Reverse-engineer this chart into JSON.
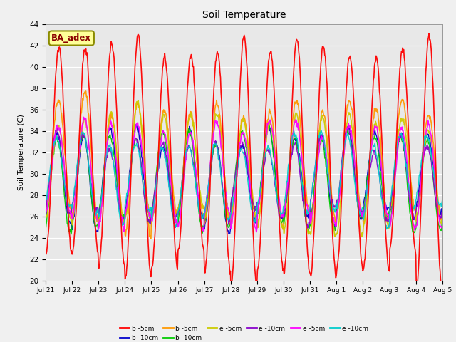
{
  "title": "Soil Temperature",
  "ylabel": "Soil Temperature (C)",
  "ylim": [
    20,
    44
  ],
  "yticks": [
    20,
    22,
    24,
    26,
    28,
    30,
    32,
    34,
    36,
    38,
    40,
    42,
    44
  ],
  "x_tick_labels": [
    "Jul 21",
    "Jul 22",
    "Jul 23",
    "Jul 24",
    "Jul 25",
    "Jul 26",
    "Jul 27",
    "Jul 28",
    "Jul 29",
    "Jul 30",
    "Jul 31",
    "Aug 1",
    "Aug 2",
    "Aug 3",
    "Aug 4",
    "Aug 5"
  ],
  "background_color": "#e8e8e8",
  "fig_bg_color": "#f0f0f0",
  "series": [
    {
      "label": "b -5cm",
      "color": "#ff0000",
      "lw": 1.2,
      "amp": 10.5,
      "mean": 31.5,
      "phase": 0.0
    },
    {
      "label": "b -10cm",
      "color": "#0000cc",
      "lw": 1.0,
      "amp": 4.0,
      "mean": 29.5,
      "phase": 0.4
    },
    {
      "label": "b -5cm",
      "color": "#ff9900",
      "lw": 1.2,
      "amp": 5.5,
      "mean": 31.0,
      "phase": 0.1
    },
    {
      "label": "b -10cm",
      "color": "#00cc00",
      "lw": 1.0,
      "amp": 4.0,
      "mean": 29.5,
      "phase": 0.45
    },
    {
      "label": "e -5cm",
      "color": "#cccc00",
      "lw": 1.2,
      "amp": 5.0,
      "mean": 30.5,
      "phase": 0.15
    },
    {
      "label": "e -10cm",
      "color": "#8800cc",
      "lw": 1.0,
      "amp": 3.5,
      "mean": 29.5,
      "phase": 0.5
    },
    {
      "label": "e -5cm",
      "color": "#ff00ff",
      "lw": 1.2,
      "amp": 4.5,
      "mean": 30.0,
      "phase": 0.2
    },
    {
      "label": "e -10cm",
      "color": "#00cccc",
      "lw": 1.0,
      "amp": 3.5,
      "mean": 29.5,
      "phase": 0.55
    }
  ],
  "annotation_text": "BA_adex",
  "annotation_color": "#8b0000",
  "annotation_bg": "#ffff99",
  "annotation_border": "#8b8b00",
  "n_days": 15,
  "n_points_per_day": 48
}
